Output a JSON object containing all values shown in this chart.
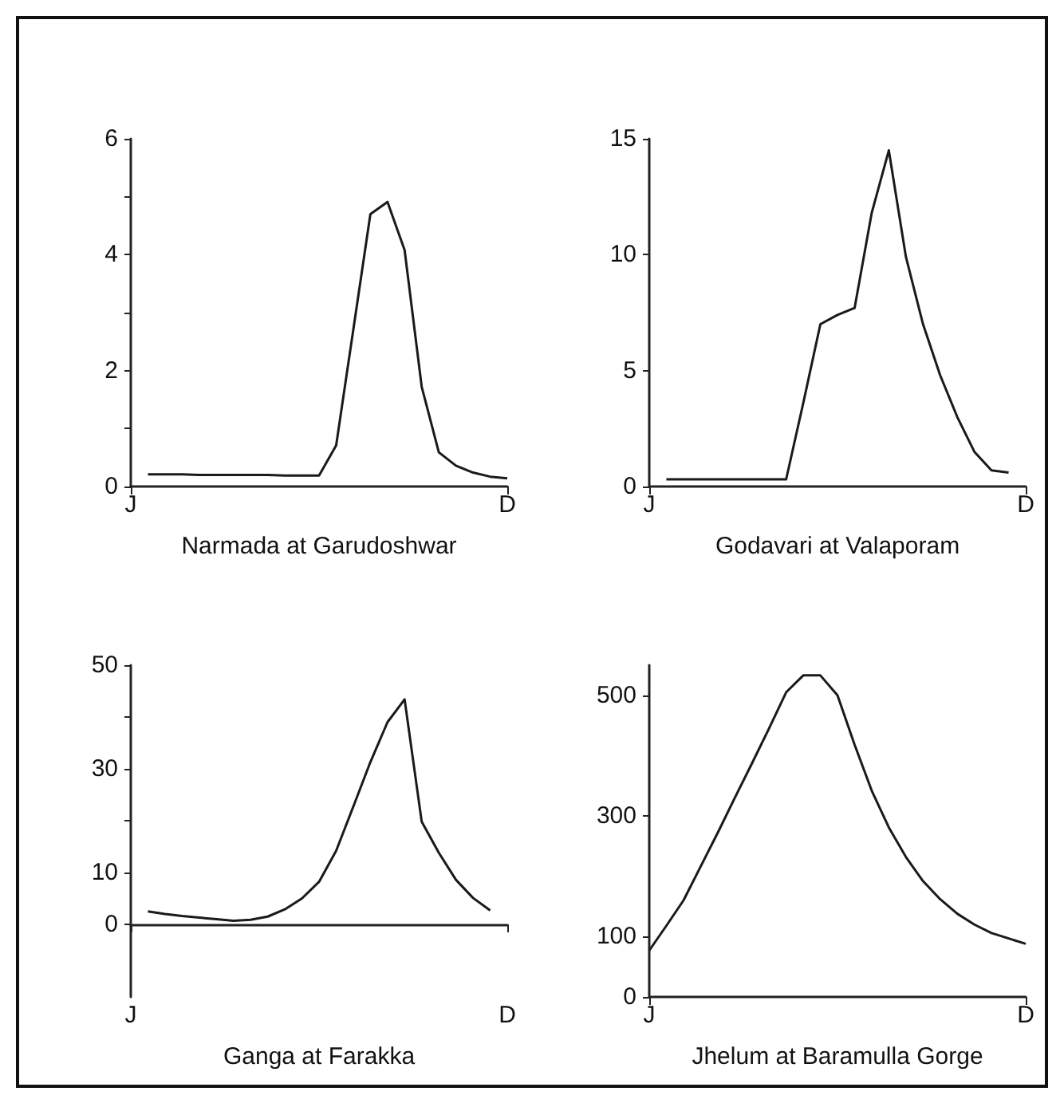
{
  "chart_data": [
    {
      "type": "line",
      "xlabel": "Narmada at Garudoshwar",
      "color": "#1a1a1a",
      "marker": "none",
      "categories": [
        "J",
        null,
        null,
        null,
        null,
        null,
        null,
        null,
        null,
        null,
        null,
        null,
        null,
        null,
        null,
        null,
        null,
        null,
        null,
        null,
        null,
        null,
        "D"
      ],
      "values": [
        null,
        0.21,
        0.21,
        0.21,
        0.2,
        0.2,
        0.2,
        0.2,
        0.2,
        0.19,
        0.19,
        0.19,
        0.71,
        2.7,
        4.7,
        4.91,
        4.08,
        1.72,
        0.59,
        0.36,
        0.24,
        0.17,
        0.14
      ],
      "ylim": [
        0,
        6
      ],
      "yticks": [
        0,
        {
          "value": 1,
          "label": null
        },
        2,
        {
          "value": 3,
          "label": null
        },
        4,
        {
          "value": 5,
          "label": null
        },
        6
      ]
    },
    {
      "type": "line",
      "xlabel": "Godavari at Valaporam",
      "color": "#1a1a1a",
      "marker": "none",
      "categories": [
        "J",
        null,
        null,
        null,
        null,
        null,
        null,
        null,
        null,
        null,
        null,
        null,
        null,
        null,
        null,
        null,
        null,
        null,
        null,
        null,
        null,
        null,
        "D"
      ],
      "values": [
        null,
        0.31,
        0.31,
        0.31,
        0.31,
        0.31,
        0.31,
        0.31,
        0.31,
        3.6,
        7.0,
        7.4,
        7.7,
        11.8,
        14.5,
        9.9,
        7.0,
        4.8,
        3.0,
        1.5,
        0.7,
        0.6,
        null
      ],
      "ylim": [
        0,
        15
      ],
      "yticks": [
        0,
        5,
        10,
        15
      ]
    },
    {
      "type": "line",
      "xlabel": "Ganga at Farakka",
      "color": "#1a1a1a",
      "marker": "none",
      "categories": [
        "J",
        null,
        null,
        null,
        null,
        null,
        null,
        null,
        null,
        null,
        null,
        null,
        null,
        null,
        null,
        null,
        null,
        null,
        null,
        null,
        null,
        null,
        "D"
      ],
      "values": [
        null,
        2.5,
        2.0,
        1.6,
        1.3,
        1.0,
        0.7,
        0.9,
        1.5,
        2.9,
        5.0,
        8.2,
        14.2,
        22.7,
        31.3,
        39.0,
        43.4,
        19.8,
        13.8,
        8.6,
        5.1,
        2.7,
        null
      ],
      "ylim": [
        -14,
        50
      ],
      "yticks": [
        0,
        10,
        {
          "value": 20,
          "label": null
        },
        30,
        {
          "value": 40,
          "label": null
        },
        50
      ]
    },
    {
      "type": "line",
      "xlabel": "Jhelum at Baramulla Gorge",
      "color": "#1a1a1a",
      "marker": "none",
      "categories": [
        "J",
        null,
        null,
        null,
        null,
        null,
        null,
        null,
        null,
        null,
        null,
        null,
        null,
        null,
        null,
        null,
        null,
        null,
        null,
        null,
        null,
        null,
        "D"
      ],
      "values": [
        77,
        118,
        160,
        216,
        272,
        330,
        387,
        445,
        505,
        533,
        533,
        500,
        418,
        342,
        281,
        232,
        192,
        162,
        138,
        120,
        106,
        97,
        88
      ],
      "ylim": [
        0,
        550
      ],
      "yticks": [
        0,
        100,
        300,
        500
      ]
    }
  ]
}
